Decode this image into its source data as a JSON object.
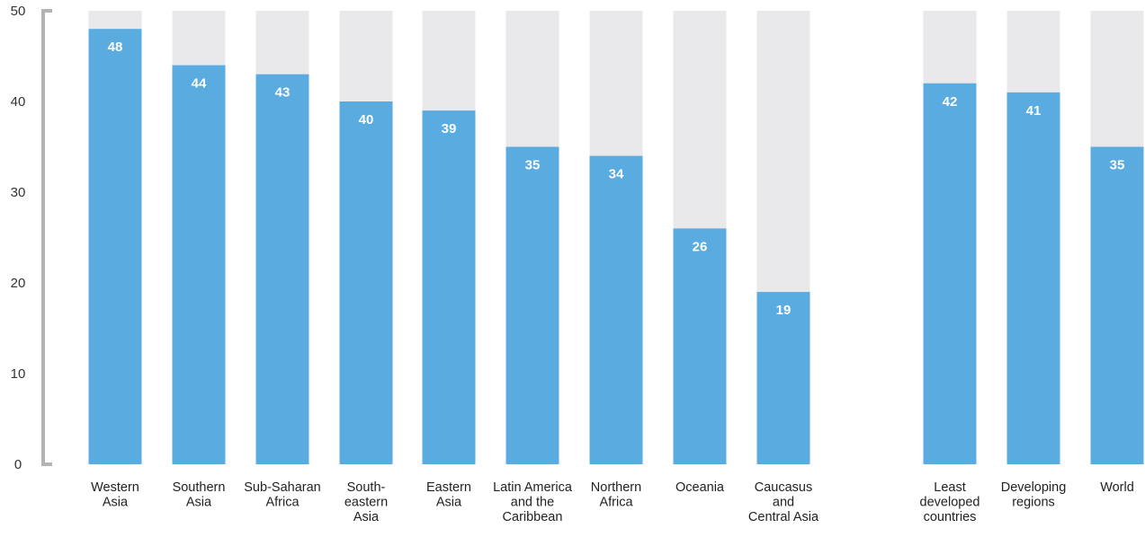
{
  "chart_data": {
    "type": "bar",
    "title": "",
    "xlabel": "",
    "ylabel": "",
    "ylim": [
      0,
      50
    ],
    "yticks": [
      0,
      10,
      20,
      30,
      40,
      50
    ],
    "grid": false,
    "categories": [
      {
        "label": [
          "Western",
          "Asia"
        ],
        "value": 48
      },
      {
        "label": [
          "Southern",
          "Asia"
        ],
        "value": 44
      },
      {
        "label": [
          "Sub-Saharan",
          "Africa"
        ],
        "value": 43
      },
      {
        "label": [
          "South-",
          "eastern",
          "Asia"
        ],
        "value": 40
      },
      {
        "label": [
          "Eastern",
          "Asia"
        ],
        "value": 39
      },
      {
        "label": [
          "Latin America",
          "and the",
          "Caribbean"
        ],
        "value": 35
      },
      {
        "label": [
          "Northern",
          "Africa"
        ],
        "value": 34
      },
      {
        "label": [
          "Oceania"
        ],
        "value": 26
      },
      {
        "label": [
          "Caucasus",
          "and",
          "Central Asia"
        ],
        "value": 19
      },
      {
        "label": [
          "Least",
          "developed",
          "countries"
        ],
        "value": 42
      },
      {
        "label": [
          "Developing",
          "regions"
        ],
        "value": 41
      },
      {
        "label": [
          "World"
        ],
        "value": 35
      }
    ],
    "colors": {
      "bar": "#5aabdf",
      "background_bar": "#e9e9eb",
      "axis": "#b4b4b4",
      "value_text": "#ffffff"
    }
  }
}
